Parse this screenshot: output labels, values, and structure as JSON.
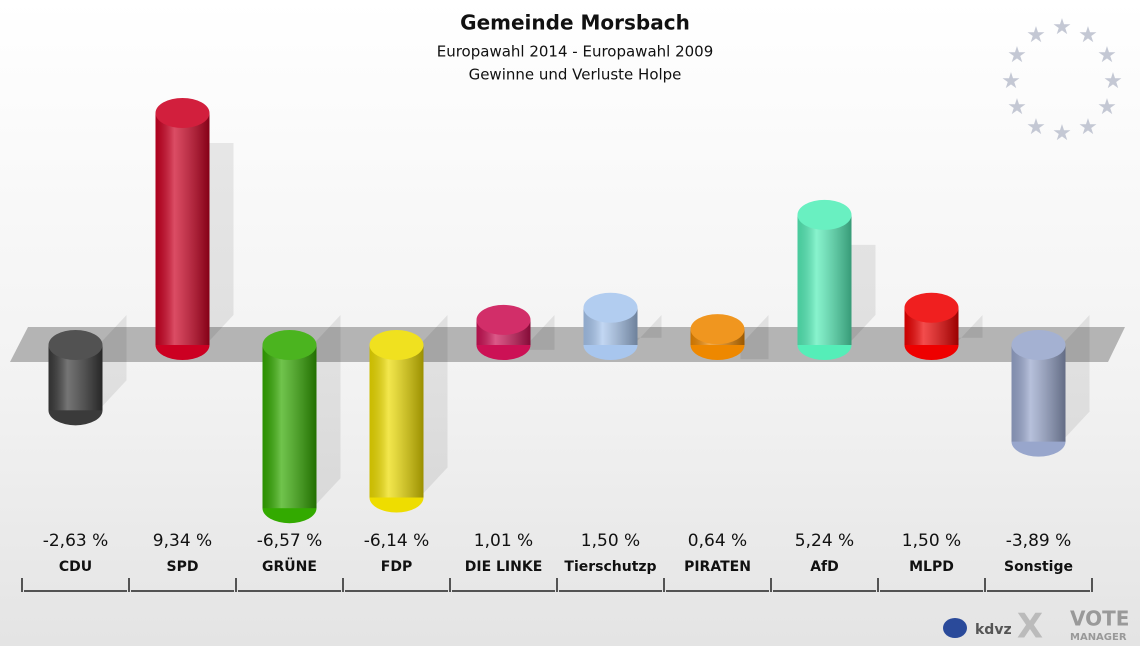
{
  "chart_data": {
    "type": "bar",
    "title": "Gemeinde Morsbach",
    "subtitle": "Europawahl 2014 - Europawahl 2009",
    "subtitle2": "Gewinne und Verluste Holpe",
    "categories": [
      "CDU",
      "SPD",
      "GRÜNE",
      "FDP",
      "DIE LINKE",
      "Tierschutzp",
      "PIRATEN",
      "AfD",
      "MLPD",
      "Sonstige"
    ],
    "values": [
      -2.63,
      9.34,
      -6.57,
      -6.14,
      1.01,
      1.5,
      0.64,
      5.24,
      1.5,
      -3.89
    ],
    "value_labels": [
      "-2,63 %",
      "9,34 %",
      "-6,57 %",
      "-6,14 %",
      "1,01 %",
      "1,50 %",
      "0,64 %",
      "5,24 %",
      "1,50 %",
      "-3,89 %"
    ],
    "colors": [
      "#3a3a3a",
      "#cc0022",
      "#33aa00",
      "#eedd00",
      "#cc1155",
      "#a8c6ee",
      "#ee8800",
      "#55eeb8",
      "#ee0000",
      "#98a6cc"
    ],
    "branding": {
      "left": "kdvz",
      "right": "VOTE",
      "right_sub": "MANAGER"
    }
  }
}
